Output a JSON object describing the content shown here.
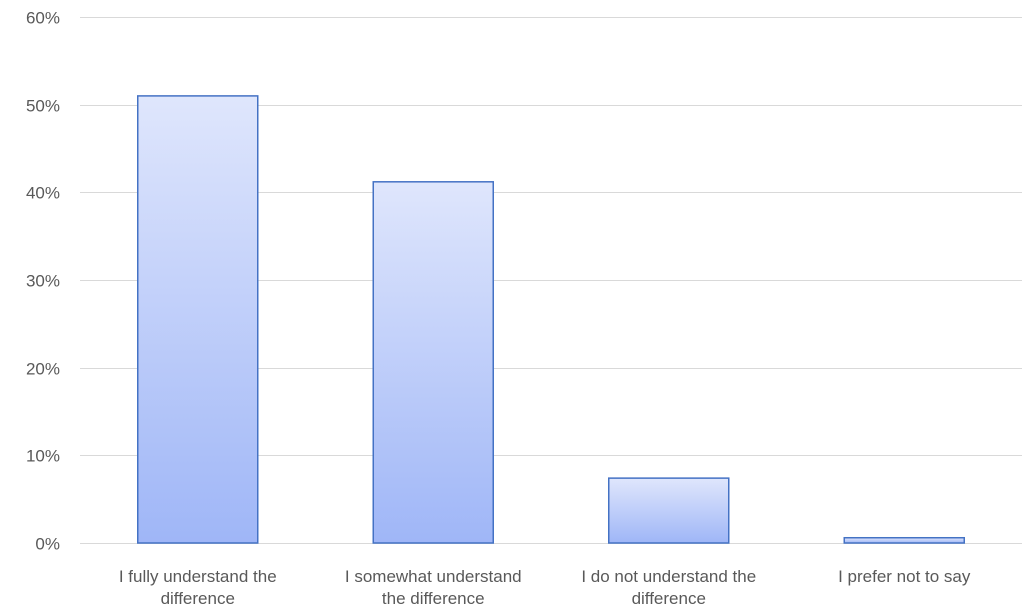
{
  "chart_data": {
    "type": "bar",
    "categories": [
      [
        "I fully understand the",
        "difference"
      ],
      [
        "I somewhat understand",
        "the difference"
      ],
      [
        "I do not understand the",
        "difference"
      ],
      [
        "I prefer not to say"
      ]
    ],
    "values": [
      51,
      41.2,
      7.4,
      0.6
    ],
    "ylim": [
      0,
      60
    ],
    "yticks": [
      0,
      10,
      20,
      30,
      40,
      50,
      60
    ],
    "ytick_format": "percent",
    "grid": true,
    "legend": "none",
    "colors": {
      "bar_fill_top": "#dfe6fc",
      "bar_fill_bottom": "#9fb6f7",
      "bar_stroke": "#4472c4",
      "grid": "#d9d9d9",
      "text": "#595959"
    }
  }
}
